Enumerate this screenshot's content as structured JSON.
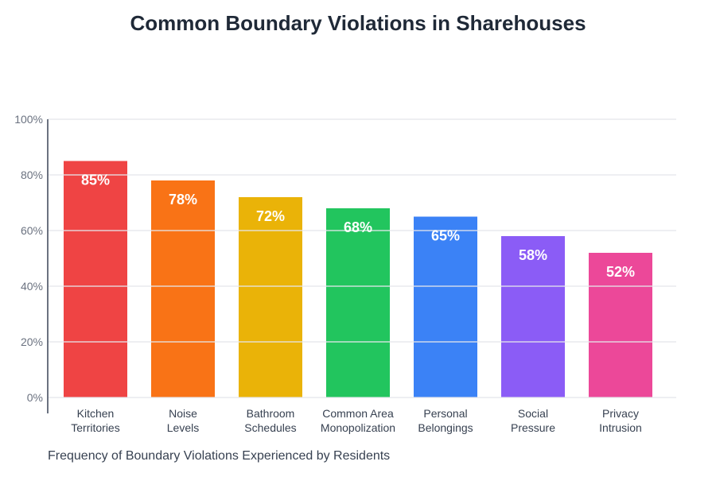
{
  "chart_data": {
    "type": "bar",
    "title": "Common Boundary Violations in Sharehouses",
    "caption": "Frequency of Boundary Violations Experienced by Residents",
    "categories": [
      [
        "Kitchen",
        "Territories"
      ],
      [
        "Noise",
        "Levels"
      ],
      [
        "Bathroom",
        "Schedules"
      ],
      [
        "Common Area",
        "Monopolization"
      ],
      [
        "Personal",
        "Belongings"
      ],
      [
        "Social",
        "Pressure"
      ],
      [
        "Privacy",
        "Intrusion"
      ]
    ],
    "values": [
      85,
      78,
      72,
      68,
      65,
      58,
      52
    ],
    "data_labels": [
      "85%",
      "78%",
      "72%",
      "68%",
      "65%",
      "58%",
      "52%"
    ],
    "colors": [
      "#ef4444",
      "#f97316",
      "#eab308",
      "#22c55e",
      "#3b82f6",
      "#8b5cf6",
      "#ec4899"
    ],
    "ylim": [
      0,
      100
    ],
    "yticks": [
      0,
      20,
      40,
      60,
      80,
      100
    ],
    "ytick_labels": [
      "0%",
      "20%",
      "40%",
      "60%",
      "80%",
      "100%"
    ],
    "grid": true
  }
}
